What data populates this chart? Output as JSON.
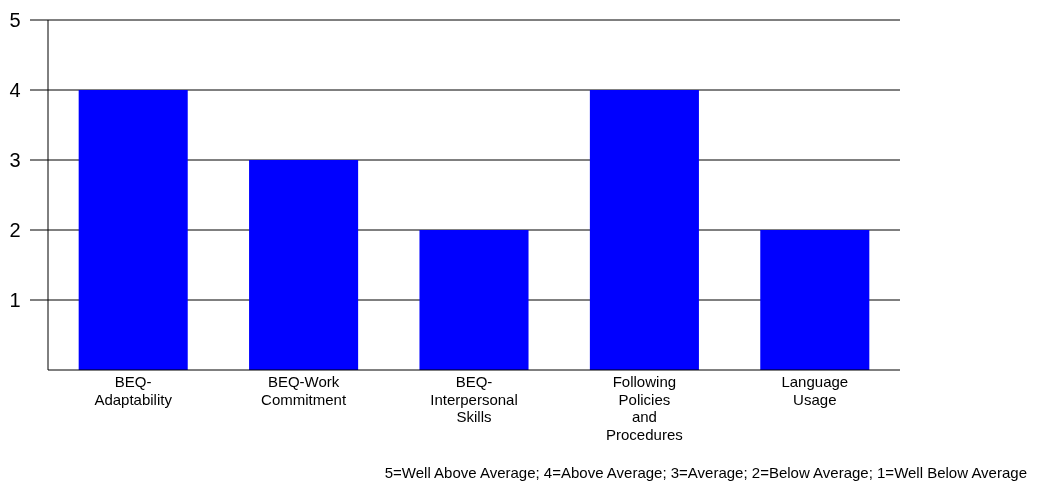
{
  "chart_data": {
    "type": "bar",
    "categories": [
      "BEQ-Adaptability",
      "BEQ-Work Commitment",
      "BEQ-Interpersonal Skills",
      "Following Policies and Procedures",
      "Language Usage"
    ],
    "values": [
      4,
      3,
      2,
      4,
      2
    ],
    "color": "#0000ff",
    "ylim": [
      0,
      5
    ],
    "yticks": [
      1,
      2,
      3,
      4,
      5
    ],
    "grid": "y",
    "annotations": [
      "5=Well Above Average; 4=Above Average; 3=Average; 2=Below Average; 1=Well Below Average"
    ]
  }
}
